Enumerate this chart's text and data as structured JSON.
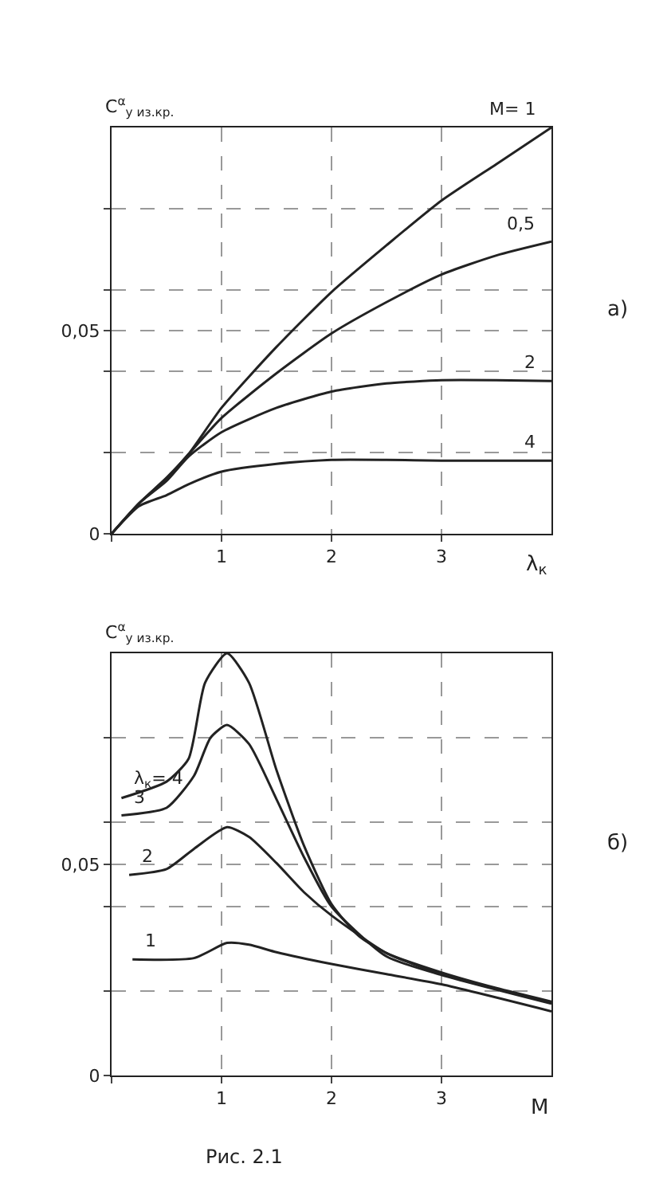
{
  "chart_data": [
    {
      "type": "line",
      "ylabel": "C$^{α}$$_{y из.кр.}$",
      "xlabel": "λ$_{к}$",
      "annotations": [
        "а)"
      ],
      "xlim": [
        0,
        4
      ],
      "xticks": [
        {
          "value": 0,
          "label": null
        },
        1,
        2,
        3
      ],
      "ylim": [
        0,
        0.1
      ],
      "yticks": [
        0,
        {
          "value": 0.02,
          "label": null
        },
        {
          "value": 0.04,
          "label": null
        },
        {
          "value": 0.05,
          "label": "0,05"
        },
        {
          "value": 0.06,
          "label": null
        },
        {
          "value": 0.08,
          "label": null
        }
      ],
      "grid": true,
      "marker": "none",
      "line_style": "solid",
      "x": [
        0,
        0.25,
        0.5,
        0.7,
        1,
        1.5,
        2,
        2.5,
        3,
        3.5,
        4
      ],
      "series": [
        {
          "name": "M= 1",
          "color": "#222222",
          "values": [
            0,
            0.0075,
            0.0138,
            0.0196,
            0.031,
            0.046,
            0.0595,
            0.071,
            0.082,
            0.091,
            0.1
          ]
        },
        {
          "name": "0,5",
          "color": "#222222",
          "values": [
            0,
            0.0075,
            0.0136,
            0.0196,
            0.0285,
            0.0395,
            0.0493,
            0.057,
            0.0638,
            0.0685,
            0.0719
          ]
        },
        {
          "name": "2",
          "color": "#222222",
          "values": [
            0,
            0.0075,
            0.013,
            0.019,
            0.025,
            0.031,
            0.035,
            0.037,
            0.0378,
            0.0378,
            0.0376
          ]
        },
        {
          "name": "4",
          "color": "#222222",
          "values": [
            0,
            0.0068,
            0.0095,
            0.0122,
            0.0153,
            0.0172,
            0.0182,
            0.0182,
            0.018,
            0.018,
            0.018
          ]
        }
      ]
    },
    {
      "type": "line",
      "ylabel": "C$^{α}$$_{y из.кр.}$",
      "xlabel": "M",
      "annotations": [
        "б)",
        "Рис. 2.1"
      ],
      "xlim": [
        0,
        4
      ],
      "xticks": [
        {
          "value": 0,
          "label": null
        },
        1,
        2,
        3
      ],
      "ylim": [
        0,
        0.1
      ],
      "yticks": [
        0,
        {
          "value": 0.02,
          "label": null
        },
        {
          "value": 0.04,
          "label": null
        },
        {
          "value": 0.05,
          "label": "0,05"
        },
        {
          "value": 0.06,
          "label": null
        },
        {
          "value": 0.08,
          "label": null
        }
      ],
      "grid": true,
      "marker": "none",
      "line_style": "solid",
      "series": [
        {
          "name": "λ$_{к}$= 4",
          "color": "#222222",
          "x": [
            0.09,
            0.5,
            0.7,
            0.85,
            1.05,
            1.25,
            1.5,
            1.75,
            2,
            2.25,
            2.5,
            3,
            3.5,
            4
          ],
          "values": [
            0.0657,
            0.0696,
            0.075,
            0.093,
            0.1,
            0.093,
            0.0723,
            0.0544,
            0.0406,
            0.033,
            0.029,
            0.0244,
            0.0207,
            0.0175
          ]
        },
        {
          "name": "3",
          "color": "#222222",
          "x": [
            0.09,
            0.5,
            0.75,
            0.9,
            1.05,
            1.25,
            1.5,
            1.75,
            2,
            2.5,
            3,
            4
          ],
          "values": [
            0.0616,
            0.0634,
            0.071,
            0.08,
            0.083,
            0.0785,
            0.0654,
            0.0517,
            0.04,
            0.0282,
            0.0238,
            0.017
          ]
        },
        {
          "name": "2",
          "color": "#222222",
          "x": [
            0.16,
            0.5,
            0.75,
            1.05,
            1.25,
            1.5,
            1.75,
            2,
            2.5,
            3,
            4
          ],
          "values": [
            0.0475,
            0.0489,
            0.0537,
            0.0588,
            0.0565,
            0.0503,
            0.0434,
            0.0379,
            0.029,
            0.024,
            0.0172
          ]
        },
        {
          "name": "1",
          "color": "#222222",
          "x": [
            0.19,
            0.75,
            1.05,
            1.25,
            1.5,
            2,
            2.5,
            3,
            4
          ],
          "values": [
            0.0275,
            0.0278,
            0.0314,
            0.031,
            0.0292,
            0.0264,
            0.024,
            0.0216,
            0.0152
          ]
        }
      ]
    }
  ]
}
